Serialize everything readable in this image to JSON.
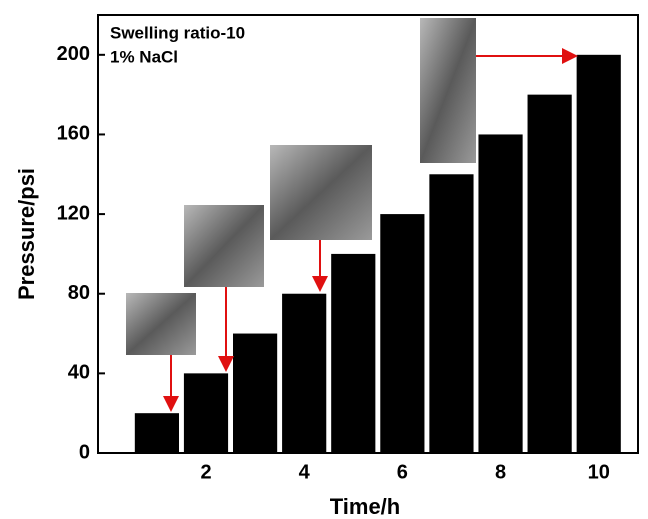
{
  "chart_data": {
    "type": "bar",
    "annotations": [
      "Swelling ratio-10",
      "1% NaCl"
    ],
    "x_label": "Time/h",
    "y_label": "Pressure/psi",
    "x": [
      1,
      2,
      3,
      4,
      5,
      6,
      7,
      8,
      9,
      10
    ],
    "values": [
      20,
      40,
      60,
      80,
      100,
      120,
      140,
      160,
      180,
      200
    ],
    "color": "#000000",
    "xlim": [
      -0.2,
      10.8
    ],
    "xticks": [
      2,
      4,
      6,
      8,
      10
    ],
    "ylim": [
      0,
      220
    ],
    "yticks": [
      0,
      40,
      80,
      120,
      160,
      200
    ]
  }
}
